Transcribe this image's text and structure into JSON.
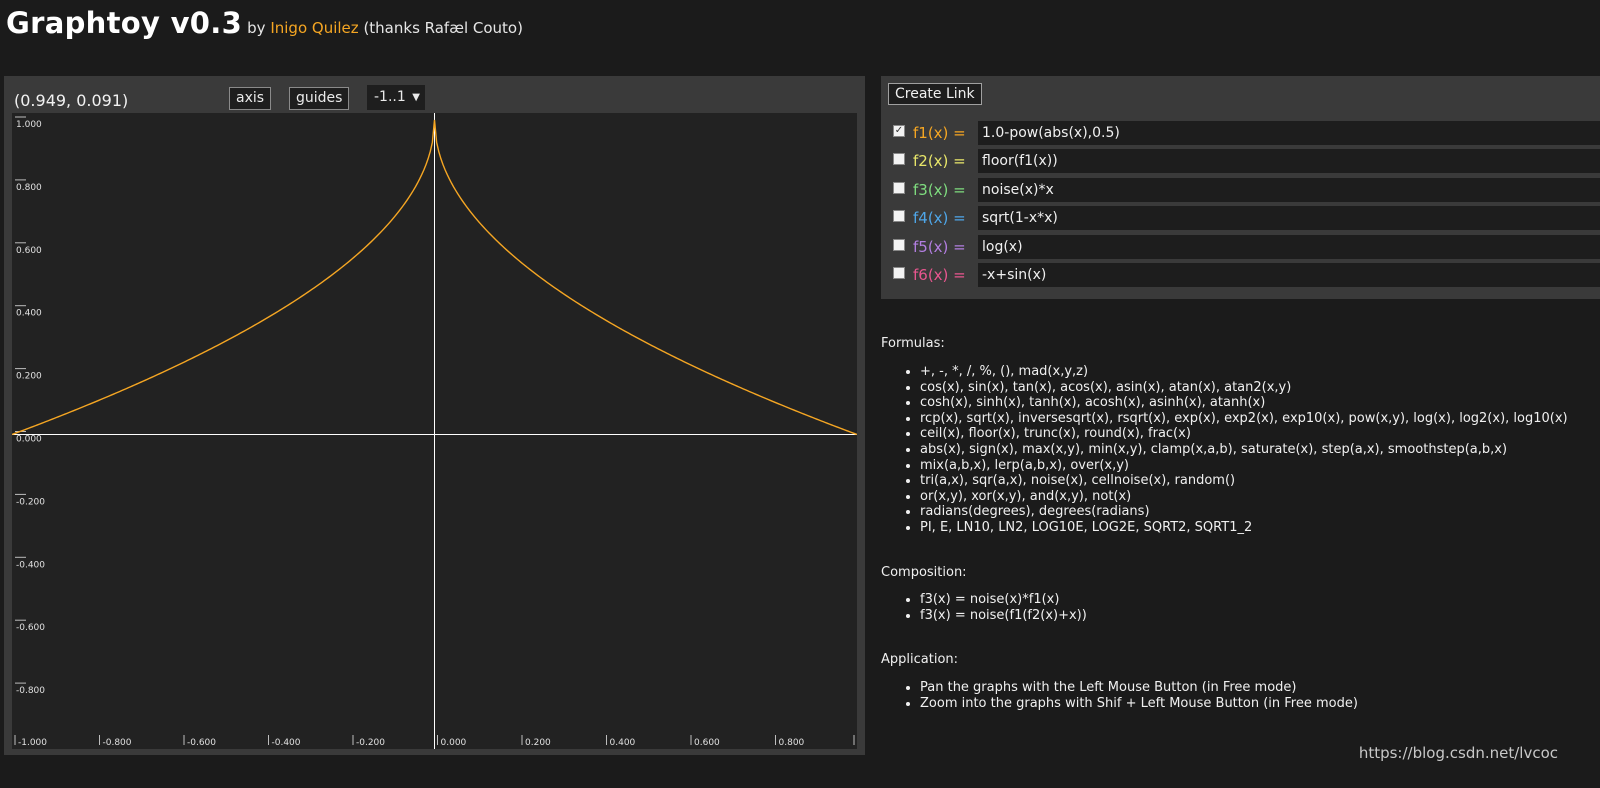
{
  "header": {
    "title": "Graphtoy v0.3",
    "by": "by",
    "author": "Inigo Quilez",
    "thanks": "(thanks Rafæl Couto)"
  },
  "toolbar": {
    "coords": "(0.949, 0.091)",
    "axis_label": "axis",
    "guides_label": "guides",
    "range_value": "-1..1"
  },
  "functions": {
    "create_link_label": "Create Link",
    "rows": [
      {
        "label": "f1(x) =",
        "value": "1.0-pow(abs(x),0.5)",
        "checked": true,
        "color": "#f5a623"
      },
      {
        "label": "f2(x) =",
        "value": "floor(f1(x))",
        "checked": false,
        "color": "#e8e66a"
      },
      {
        "label": "f3(x) =",
        "value": "noise(x)*x",
        "checked": false,
        "color": "#7fdc7f"
      },
      {
        "label": "f4(x) =",
        "value": "sqrt(1-x*x)",
        "checked": false,
        "color": "#4fa6e8"
      },
      {
        "label": "f5(x) =",
        "value": "log(x)",
        "checked": false,
        "color": "#b27ee0"
      },
      {
        "label": "f6(x) =",
        "value": "-x+sin(x)",
        "checked": false,
        "color": "#e8568f"
      }
    ]
  },
  "docs": {
    "formulas_title": "Formulas:",
    "formulas": [
      "+, -, *, /, %, (), mad(x,y,z)",
      "cos(x), sin(x), tan(x), acos(x), asin(x), atan(x), atan2(x,y)",
      "cosh(x), sinh(x), tanh(x), acosh(x), asinh(x), atanh(x)",
      "rcp(x), sqrt(x), inversesqrt(x), rsqrt(x), exp(x), exp2(x), exp10(x), pow(x,y), log(x), log2(x), log10(x)",
      "ceil(x), floor(x), trunc(x), round(x), frac(x)",
      "abs(x), sign(x), max(x,y), min(x,y), clamp(x,a,b), saturate(x), step(a,x), smoothstep(a,b,x)",
      "mix(a,b,x), lerp(a,b,x), over(x,y)",
      "tri(a,x), sqr(a,x), noise(x), cellnoise(x), random()",
      "or(x,y), xor(x,y), and(x,y), not(x)",
      "radians(degrees), degrees(radians)",
      "PI, E, LN10, LN2, LOG10E, LOG2E, SQRT2, SQRT1_2"
    ],
    "composition_title": "Composition:",
    "composition": [
      "f3(x) = noise(x)*f1(x)",
      "f3(x) = noise(f1(f2(x)+x))"
    ],
    "application_title": "Application:",
    "application": [
      "Pan the graphs with the Left Mouse Button (in Free mode)",
      "Zoom into the graphs with Shif + Left Mouse Button (in Free mode)"
    ]
  },
  "watermark": "https://blog.csdn.net/lvcoc",
  "chart_data": {
    "type": "line",
    "function": "1.0-pow(abs(x),0.5)",
    "xlim": [
      -1.0,
      1.0
    ],
    "ylim": [
      -1.0,
      1.0
    ],
    "x_ticks": [
      "-1.000",
      "-0.800",
      "-0.600",
      "-0.400",
      "-0.200",
      "0.000",
      "0.200",
      "0.400",
      "0.600",
      "0.800"
    ],
    "y_ticks": [
      "1.000",
      "0.800",
      "0.600",
      "0.400",
      "0.200",
      "0.000",
      "-0.200",
      "-0.400",
      "-0.600",
      "-0.800"
    ],
    "series": [
      {
        "color": "#f5a623"
      }
    ],
    "axis_color": "#ffffff"
  }
}
